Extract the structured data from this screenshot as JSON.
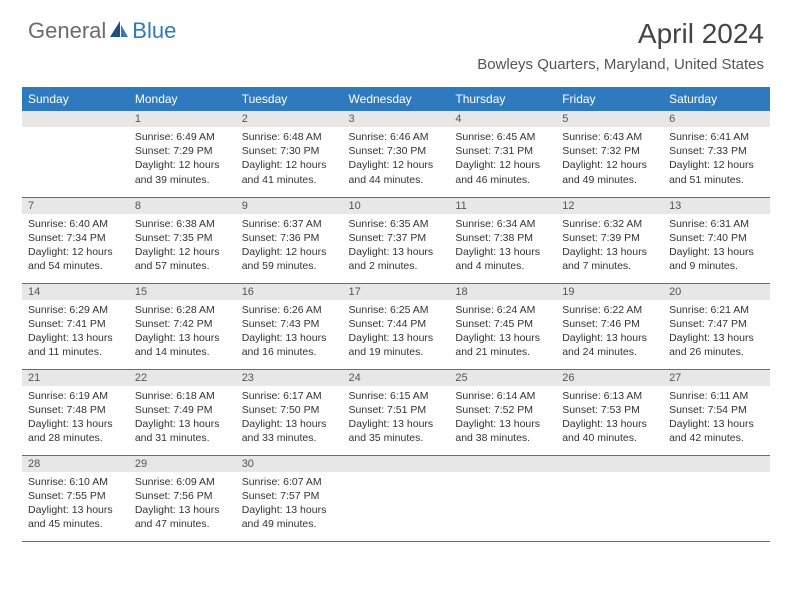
{
  "brand": {
    "general": "General",
    "blue": "Blue"
  },
  "title": "April 2024",
  "location": "Bowleys Quarters, Maryland, United States",
  "colors": {
    "header_bg": "#2f7abf",
    "daynum_bg": "#e7e7e7",
    "row_border": "#2f7abf",
    "logo_gray": "#6b6b6b",
    "logo_blue": "#2f7abf"
  },
  "daysOfWeek": [
    "Sunday",
    "Monday",
    "Tuesday",
    "Wednesday",
    "Thursday",
    "Friday",
    "Saturday"
  ],
  "leadingBlanks": 1,
  "days": [
    {
      "n": 1,
      "sunrise": "6:49 AM",
      "sunset": "7:29 PM",
      "daylight": "12 hours and 39 minutes."
    },
    {
      "n": 2,
      "sunrise": "6:48 AM",
      "sunset": "7:30 PM",
      "daylight": "12 hours and 41 minutes."
    },
    {
      "n": 3,
      "sunrise": "6:46 AM",
      "sunset": "7:30 PM",
      "daylight": "12 hours and 44 minutes."
    },
    {
      "n": 4,
      "sunrise": "6:45 AM",
      "sunset": "7:31 PM",
      "daylight": "12 hours and 46 minutes."
    },
    {
      "n": 5,
      "sunrise": "6:43 AM",
      "sunset": "7:32 PM",
      "daylight": "12 hours and 49 minutes."
    },
    {
      "n": 6,
      "sunrise": "6:41 AM",
      "sunset": "7:33 PM",
      "daylight": "12 hours and 51 minutes."
    },
    {
      "n": 7,
      "sunrise": "6:40 AM",
      "sunset": "7:34 PM",
      "daylight": "12 hours and 54 minutes."
    },
    {
      "n": 8,
      "sunrise": "6:38 AM",
      "sunset": "7:35 PM",
      "daylight": "12 hours and 57 minutes."
    },
    {
      "n": 9,
      "sunrise": "6:37 AM",
      "sunset": "7:36 PM",
      "daylight": "12 hours and 59 minutes."
    },
    {
      "n": 10,
      "sunrise": "6:35 AM",
      "sunset": "7:37 PM",
      "daylight": "13 hours and 2 minutes."
    },
    {
      "n": 11,
      "sunrise": "6:34 AM",
      "sunset": "7:38 PM",
      "daylight": "13 hours and 4 minutes."
    },
    {
      "n": 12,
      "sunrise": "6:32 AM",
      "sunset": "7:39 PM",
      "daylight": "13 hours and 7 minutes."
    },
    {
      "n": 13,
      "sunrise": "6:31 AM",
      "sunset": "7:40 PM",
      "daylight": "13 hours and 9 minutes."
    },
    {
      "n": 14,
      "sunrise": "6:29 AM",
      "sunset": "7:41 PM",
      "daylight": "13 hours and 11 minutes."
    },
    {
      "n": 15,
      "sunrise": "6:28 AM",
      "sunset": "7:42 PM",
      "daylight": "13 hours and 14 minutes."
    },
    {
      "n": 16,
      "sunrise": "6:26 AM",
      "sunset": "7:43 PM",
      "daylight": "13 hours and 16 minutes."
    },
    {
      "n": 17,
      "sunrise": "6:25 AM",
      "sunset": "7:44 PM",
      "daylight": "13 hours and 19 minutes."
    },
    {
      "n": 18,
      "sunrise": "6:24 AM",
      "sunset": "7:45 PM",
      "daylight": "13 hours and 21 minutes."
    },
    {
      "n": 19,
      "sunrise": "6:22 AM",
      "sunset": "7:46 PM",
      "daylight": "13 hours and 24 minutes."
    },
    {
      "n": 20,
      "sunrise": "6:21 AM",
      "sunset": "7:47 PM",
      "daylight": "13 hours and 26 minutes."
    },
    {
      "n": 21,
      "sunrise": "6:19 AM",
      "sunset": "7:48 PM",
      "daylight": "13 hours and 28 minutes."
    },
    {
      "n": 22,
      "sunrise": "6:18 AM",
      "sunset": "7:49 PM",
      "daylight": "13 hours and 31 minutes."
    },
    {
      "n": 23,
      "sunrise": "6:17 AM",
      "sunset": "7:50 PM",
      "daylight": "13 hours and 33 minutes."
    },
    {
      "n": 24,
      "sunrise": "6:15 AM",
      "sunset": "7:51 PM",
      "daylight": "13 hours and 35 minutes."
    },
    {
      "n": 25,
      "sunrise": "6:14 AM",
      "sunset": "7:52 PM",
      "daylight": "13 hours and 38 minutes."
    },
    {
      "n": 26,
      "sunrise": "6:13 AM",
      "sunset": "7:53 PM",
      "daylight": "13 hours and 40 minutes."
    },
    {
      "n": 27,
      "sunrise": "6:11 AM",
      "sunset": "7:54 PM",
      "daylight": "13 hours and 42 minutes."
    },
    {
      "n": 28,
      "sunrise": "6:10 AM",
      "sunset": "7:55 PM",
      "daylight": "13 hours and 45 minutes."
    },
    {
      "n": 29,
      "sunrise": "6:09 AM",
      "sunset": "7:56 PM",
      "daylight": "13 hours and 47 minutes."
    },
    {
      "n": 30,
      "sunrise": "6:07 AM",
      "sunset": "7:57 PM",
      "daylight": "13 hours and 49 minutes."
    }
  ],
  "labels": {
    "sunrise": "Sunrise:",
    "sunset": "Sunset:",
    "daylight": "Daylight:"
  }
}
